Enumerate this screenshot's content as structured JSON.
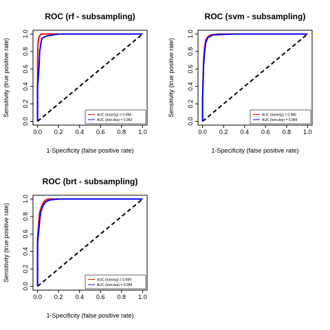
{
  "chart_data": [
    {
      "type": "line",
      "title": "ROC (rf - subsampling)",
      "xlabel": "1-Specificity (false positive rate)",
      "ylabel": "Sensitivity (true positive rate)",
      "xlim": [
        0,
        1
      ],
      "ylim": [
        0,
        1
      ],
      "xticks": [
        "0.0",
        "0.2",
        "0.4",
        "0.6",
        "0.8",
        "1.0"
      ],
      "yticks": [
        "0.0",
        "0.2",
        "0.4",
        "0.6",
        "0.8",
        "1.0"
      ],
      "grid": false,
      "legend": "bottom-right",
      "reference_line": {
        "x": [
          0,
          1
        ],
        "y": [
          0,
          1
        ],
        "style": "dashed"
      },
      "series": [
        {
          "name": "AUC (training) = 0.998",
          "color": "#ff0000",
          "x": [
            0,
            0,
            0.005,
            0.01,
            0.02,
            0.03,
            0.05,
            0.1,
            1
          ],
          "y": [
            0,
            0.75,
            0.9,
            0.95,
            0.98,
            0.995,
            1,
            1,
            1
          ]
        },
        {
          "name": "AUC (test.dep) = 0.983",
          "color": "#0000ff",
          "x": [
            0,
            0,
            0.01,
            0.015,
            0.02,
            0.04,
            0.07,
            0.1,
            0.15,
            0.2,
            1
          ],
          "y": [
            0,
            0.4,
            0.55,
            0.65,
            0.8,
            0.95,
            0.97,
            0.98,
            0.99,
            1,
            1
          ]
        }
      ]
    },
    {
      "type": "line",
      "title": "ROC (svm - subsampling)",
      "xlabel": "1-Specificity (false positive rate)",
      "ylabel": "Sensitivity (true positive rate)",
      "xlim": [
        0,
        1
      ],
      "ylim": [
        0,
        1
      ],
      "xticks": [
        "0.0",
        "0.2",
        "0.4",
        "0.6",
        "0.8",
        "1.0"
      ],
      "yticks": [
        "0.0",
        "0.2",
        "0.4",
        "0.6",
        "0.8",
        "1.0"
      ],
      "grid": false,
      "legend": "bottom-right",
      "reference_line": {
        "x": [
          0,
          1
        ],
        "y": [
          0,
          1
        ],
        "style": "dashed"
      },
      "series": [
        {
          "name": "AUC (training) = 0.986",
          "color": "#ff0000",
          "x": [
            0,
            0,
            0.005,
            0.01,
            0.02,
            0.03,
            0.05,
            0.08,
            0.15,
            1
          ],
          "y": [
            0,
            0.2,
            0.5,
            0.7,
            0.85,
            0.93,
            0.97,
            0.99,
            1,
            1
          ]
        },
        {
          "name": "AUC (test.dep) = 0.984",
          "color": "#0000ff",
          "x": [
            0,
            0,
            0.005,
            0.01,
            0.02,
            0.03,
            0.05,
            0.1,
            0.3,
            1
          ],
          "y": [
            0,
            0.25,
            0.45,
            0.65,
            0.8,
            0.9,
            0.96,
            0.99,
            1,
            1
          ]
        }
      ]
    },
    {
      "type": "line",
      "title": "ROC (brt - subsampling)",
      "xlabel": "1-Specificity (false positive rate)",
      "ylabel": "Sensitivity (true positive rate)",
      "xlim": [
        0,
        1
      ],
      "ylim": [
        0,
        1
      ],
      "xticks": [
        "0.0",
        "0.2",
        "0.4",
        "0.6",
        "0.8",
        "1.0"
      ],
      "yticks": [
        "0.0",
        "0.2",
        "0.4",
        "0.6",
        "0.8",
        "1.0"
      ],
      "grid": false,
      "legend": "bottom-right",
      "reference_line": {
        "x": [
          0,
          1
        ],
        "y": [
          0,
          1
        ],
        "style": "dashed"
      },
      "series": [
        {
          "name": "AUC (training) = 0.989",
          "color": "#ff0000",
          "x": [
            0,
            0,
            0.01,
            0.02,
            0.04,
            0.06,
            0.08,
            0.1,
            1
          ],
          "y": [
            0,
            0.55,
            0.72,
            0.85,
            0.92,
            0.97,
            0.99,
            1,
            1
          ]
        },
        {
          "name": "AUC (test.dep) = 0.984",
          "color": "#0000ff",
          "x": [
            0,
            0,
            0.01,
            0.02,
            0.03,
            0.05,
            0.08,
            0.12,
            0.2,
            1
          ],
          "y": [
            0,
            0.5,
            0.62,
            0.75,
            0.85,
            0.92,
            0.97,
            0.99,
            1,
            1
          ]
        }
      ]
    }
  ]
}
